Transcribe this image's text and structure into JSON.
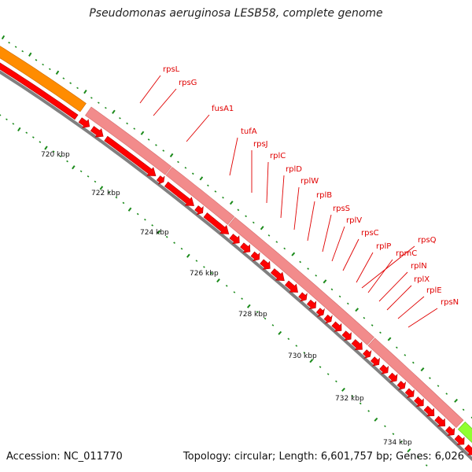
{
  "title": "Pseudomonas aeruginosa LESB58, complete genome",
  "footer": {
    "accession": "Accession: NC_011770",
    "summary": "Topology: circular; Length: 6,601,757 bp; Genes: 6,026"
  },
  "colors": {
    "gene_fill": "#ff0000",
    "gene_stroke": "#b80000",
    "band_pink": "#f28b8b",
    "band_orange": "#ff8c00",
    "band_green": "#90ff30",
    "backbone": "#808080",
    "tick_green": "#1a8a1a",
    "label_red": "#e00000"
  },
  "scale_ticks": [
    {
      "label": "720 kbp",
      "kbp": 720
    },
    {
      "label": "722 kbp",
      "kbp": 722
    },
    {
      "label": "724 kbp",
      "kbp": 724
    },
    {
      "label": "726 kbp",
      "kbp": 726
    },
    {
      "label": "728 kbp",
      "kbp": 728
    },
    {
      "label": "730 kbp",
      "kbp": 730
    },
    {
      "label": "732 kbp",
      "kbp": 732
    },
    {
      "label": "734 kbp",
      "kbp": 734
    }
  ],
  "genes": [
    {
      "name": "rpsL"
    },
    {
      "name": "rpsG"
    },
    {
      "name": "fusA1"
    },
    {
      "name": "tufA"
    },
    {
      "name": "rpsJ"
    },
    {
      "name": "rplC"
    },
    {
      "name": "rplD"
    },
    {
      "name": "rplW"
    },
    {
      "name": "rplB"
    },
    {
      "name": "rpsS"
    },
    {
      "name": "rplV"
    },
    {
      "name": "rpsC"
    },
    {
      "name": "rplP"
    },
    {
      "name": "rpmC"
    },
    {
      "name": "rplN"
    },
    {
      "name": "rplX"
    },
    {
      "name": "rplE"
    },
    {
      "name": "rpsN"
    },
    {
      "name": "rpsQ"
    }
  ]
}
